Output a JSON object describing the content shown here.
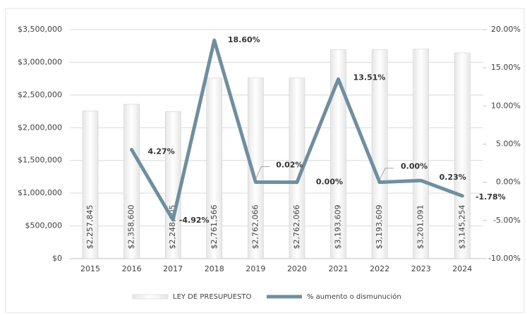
{
  "chart_data": {
    "type": "bar_line",
    "categories": [
      "2015",
      "2016",
      "2017",
      "2018",
      "2019",
      "2020",
      "2021",
      "2022",
      "2023",
      "2024"
    ],
    "series": [
      {
        "name": "LEY DE PRESUPUESTO",
        "type": "bar",
        "color": "#f2f2f2",
        "values": [
          2257845,
          2358600,
          2248005,
          2761566,
          2762066,
          2762066,
          3193609,
          3193609,
          3201091,
          3145254
        ],
        "value_labels": [
          "$2,257,845",
          "$2,358,600",
          "$2,248,005",
          "$2,761,566",
          "$2,762,066",
          "$2,762,066",
          "$3,193,609",
          "$3,193,609",
          "$3,201,091",
          "$3,145,254"
        ]
      },
      {
        "name": "% aumento o dismunución",
        "type": "line",
        "axis": "y2",
        "color": "#6f8fa0",
        "values": [
          null,
          4.27,
          -4.92,
          18.6,
          0.02,
          0.0,
          13.51,
          0.0,
          0.23,
          -1.78
        ],
        "value_labels": [
          null,
          "4.27%",
          "-4.92%",
          "18.60%",
          "0.02%",
          "0.00%",
          "13.51%",
          "0.00%",
          "0.23%",
          "-1.78%"
        ]
      }
    ],
    "ylim": [
      0,
      3500000
    ],
    "yticks": [
      {
        "value": 0,
        "label": "$0"
      },
      {
        "value": 500000,
        "label": "$500,000"
      },
      {
        "value": 1000000,
        "label": "$1,000,000"
      },
      {
        "value": 1500000,
        "label": "$1,500,000"
      },
      {
        "value": 2000000,
        "label": "$2,000,000"
      },
      {
        "value": 2500000,
        "label": "$2,500,000"
      },
      {
        "value": 3000000,
        "label": "$3,000,000"
      },
      {
        "value": 3500000,
        "label": "$3,500,000"
      }
    ],
    "y2lim": [
      -10,
      20
    ],
    "y2ticks": [
      {
        "value": -10,
        "label": "-10.00%"
      },
      {
        "value": -5,
        "label": "-5.00%"
      },
      {
        "value": 0,
        "label": "0.00%"
      },
      {
        "value": 5,
        "label": "5.00%"
      },
      {
        "value": 10,
        "label": "10.00%"
      },
      {
        "value": 15,
        "label": "15.00%"
      },
      {
        "value": 20,
        "label": "20.00%"
      }
    ],
    "grid": true,
    "legend": "bottom"
  }
}
